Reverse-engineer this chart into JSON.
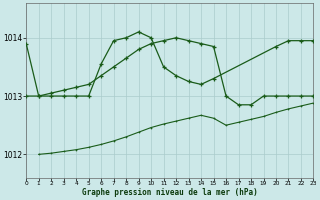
{
  "title": "Graphe pression niveau de la mer (hPa)",
  "bg": "#cce8e8",
  "grid_color": "#aacccc",
  "line_color": "#1a5c1a",
  "xlim": [
    0,
    23
  ],
  "ylim": [
    1011.6,
    1014.6
  ],
  "yticks": [
    1012,
    1013,
    1014
  ],
  "xticks": [
    0,
    1,
    2,
    3,
    4,
    5,
    6,
    7,
    8,
    9,
    10,
    11,
    12,
    13,
    14,
    15,
    16,
    17,
    18,
    19,
    20,
    21,
    22,
    23
  ],
  "s1x": [
    0,
    1,
    2,
    3,
    4,
    5,
    6,
    7,
    8,
    9,
    10,
    11,
    12,
    13,
    14,
    15,
    20,
    21,
    22,
    23
  ],
  "s1y": [
    1013.9,
    1013.0,
    1013.0,
    1013.0,
    1013.0,
    1013.0,
    1013.55,
    1013.95,
    1014.0,
    1014.1,
    1014.0,
    1013.5,
    1013.35,
    1013.25,
    1013.2,
    1013.3,
    1013.85,
    1013.95,
    1013.95,
    1013.95
  ],
  "s2x": [
    0,
    1,
    2,
    3,
    4,
    5,
    6,
    7,
    8,
    9,
    10,
    11,
    12,
    13,
    14,
    15,
    16,
    17,
    18,
    19,
    20,
    21,
    22,
    23
  ],
  "s2y": [
    1013.0,
    1013.0,
    1013.05,
    1013.1,
    1013.15,
    1013.2,
    1013.35,
    1013.5,
    1013.65,
    1013.8,
    1013.9,
    1013.95,
    1014.0,
    1013.95,
    1013.9,
    1013.85,
    1013.0,
    1012.85,
    1012.85,
    1013.0,
    1013.0,
    1013.0,
    1013.0,
    1013.0
  ],
  "s3x": [
    1,
    2,
    3,
    4,
    5,
    6,
    7,
    8,
    9,
    10,
    11,
    12,
    13,
    14,
    15,
    16,
    17,
    18,
    19,
    20,
    21,
    22,
    23
  ],
  "s3y": [
    1012.0,
    1012.02,
    1012.05,
    1012.08,
    1012.12,
    1012.17,
    1012.23,
    1012.3,
    1012.38,
    1012.46,
    1012.52,
    1012.57,
    1012.62,
    1012.67,
    1012.62,
    1012.5,
    1012.55,
    1012.6,
    1012.65,
    1012.72,
    1012.78,
    1012.83,
    1012.88
  ]
}
